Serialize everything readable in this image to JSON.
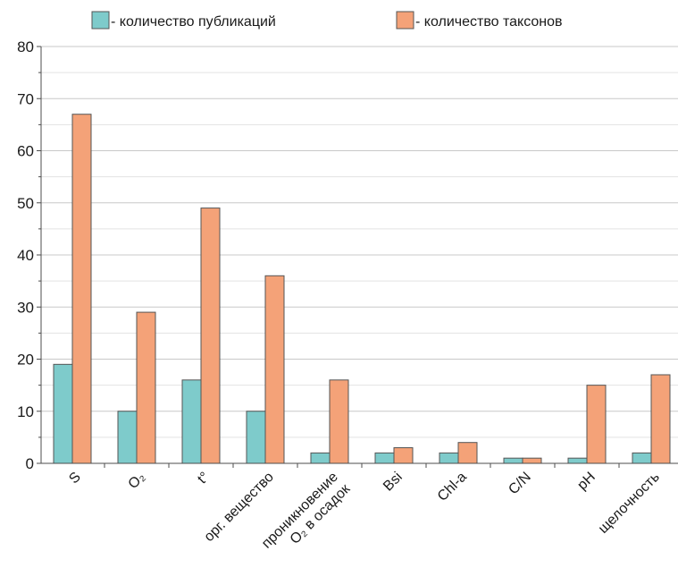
{
  "chart_data": {
    "type": "bar",
    "title": "",
    "xlabel": "",
    "ylabel": "",
    "ylim": [
      0,
      80
    ],
    "yticks": [
      0,
      10,
      20,
      30,
      40,
      50,
      60,
      70,
      80
    ],
    "grid": true,
    "legend_position": "top",
    "categories": [
      [
        "S"
      ],
      [
        "O₂"
      ],
      [
        "t°"
      ],
      [
        "орг. вещество"
      ],
      [
        "проникновение",
        "O₂ в осадок"
      ],
      [
        "Bsi"
      ],
      [
        "Chl-a"
      ],
      [
        "C/N"
      ],
      [
        "pH"
      ],
      [
        "щелочность"
      ]
    ],
    "series": [
      {
        "name": "- количество публикаций",
        "color": "#7ecbcb",
        "values": [
          19,
          10,
          16,
          10,
          2,
          2,
          2,
          1,
          1,
          2
        ]
      },
      {
        "name": "- количество таксонов",
        "color": "#f4a278",
        "values": [
          67,
          29,
          49,
          36,
          16,
          3,
          4,
          1,
          15,
          17
        ]
      }
    ]
  }
}
